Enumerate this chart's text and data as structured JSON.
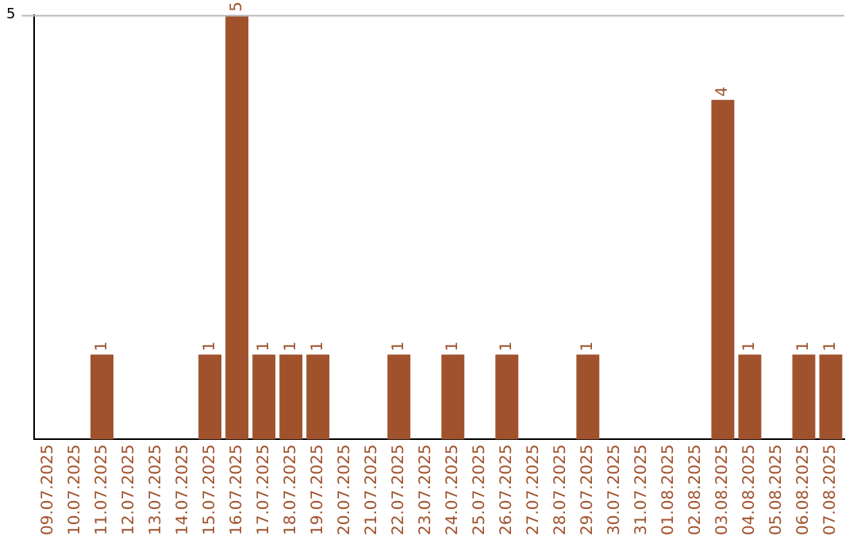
{
  "chart_data": {
    "type": "bar",
    "categories": [
      "09.07.2025",
      "10.07.2025",
      "11.07.2025",
      "12.07.2025",
      "13.07.2025",
      "14.07.2025",
      "15.07.2025",
      "16.07.2025",
      "17.07.2025",
      "18.07.2025",
      "19.07.2025",
      "20.07.2025",
      "21.07.2025",
      "22.07.2025",
      "23.07.2025",
      "24.07.2025",
      "25.07.2025",
      "26.07.2025",
      "27.07.2025",
      "28.07.2025",
      "29.07.2025",
      "30.07.2025",
      "31.07.2025",
      "01.08.2025",
      "02.08.2025",
      "03.08.2025",
      "04.08.2025",
      "05.08.2025",
      "06.08.2025",
      "07.08.2025"
    ],
    "values": [
      null,
      null,
      1,
      null,
      null,
      null,
      1,
      5,
      1,
      1,
      1,
      null,
      null,
      1,
      null,
      1,
      null,
      1,
      null,
      null,
      1,
      null,
      null,
      null,
      null,
      4,
      1,
      null,
      1,
      1
    ],
    "color": "#a0522d",
    "ylim": [
      0,
      5
    ],
    "yticks": [
      5
    ],
    "data_labels": true
  }
}
